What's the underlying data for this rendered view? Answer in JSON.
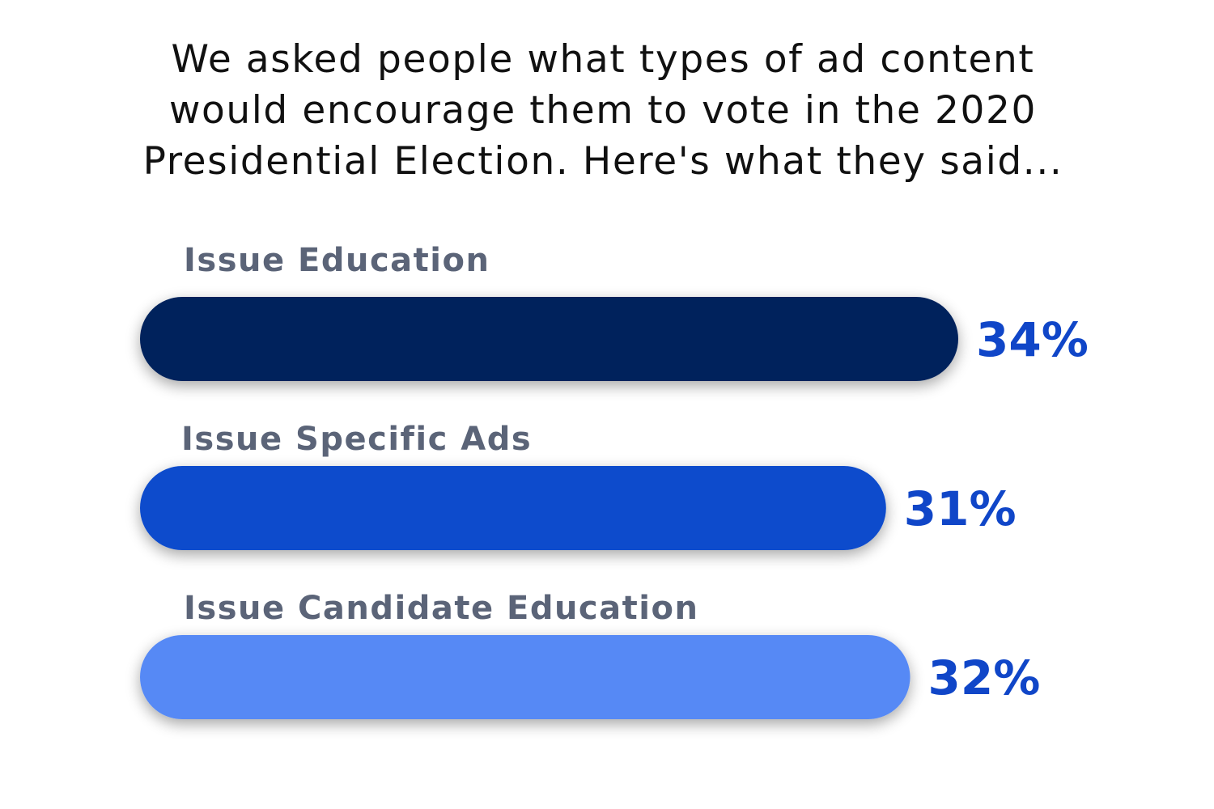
{
  "chart_data": {
    "type": "bar",
    "orientation": "horizontal",
    "title": "We asked people what types of ad content\nwould encourage them to vote in the 2020\nPresidential Election. Here's what they said...",
    "categories": [
      "Issue Education",
      "Issue Specific Ads",
      "Issue Candidate Education"
    ],
    "values": [
      34,
      31,
      32
    ],
    "value_labels": [
      "34%",
      "31%",
      "32%"
    ],
    "bar_colors": [
      "#06235c",
      "#0c4ccc",
      "#5689f5"
    ],
    "label_color": "#5b6478",
    "value_color": "#1046c8",
    "grid": false,
    "legend": "none"
  }
}
